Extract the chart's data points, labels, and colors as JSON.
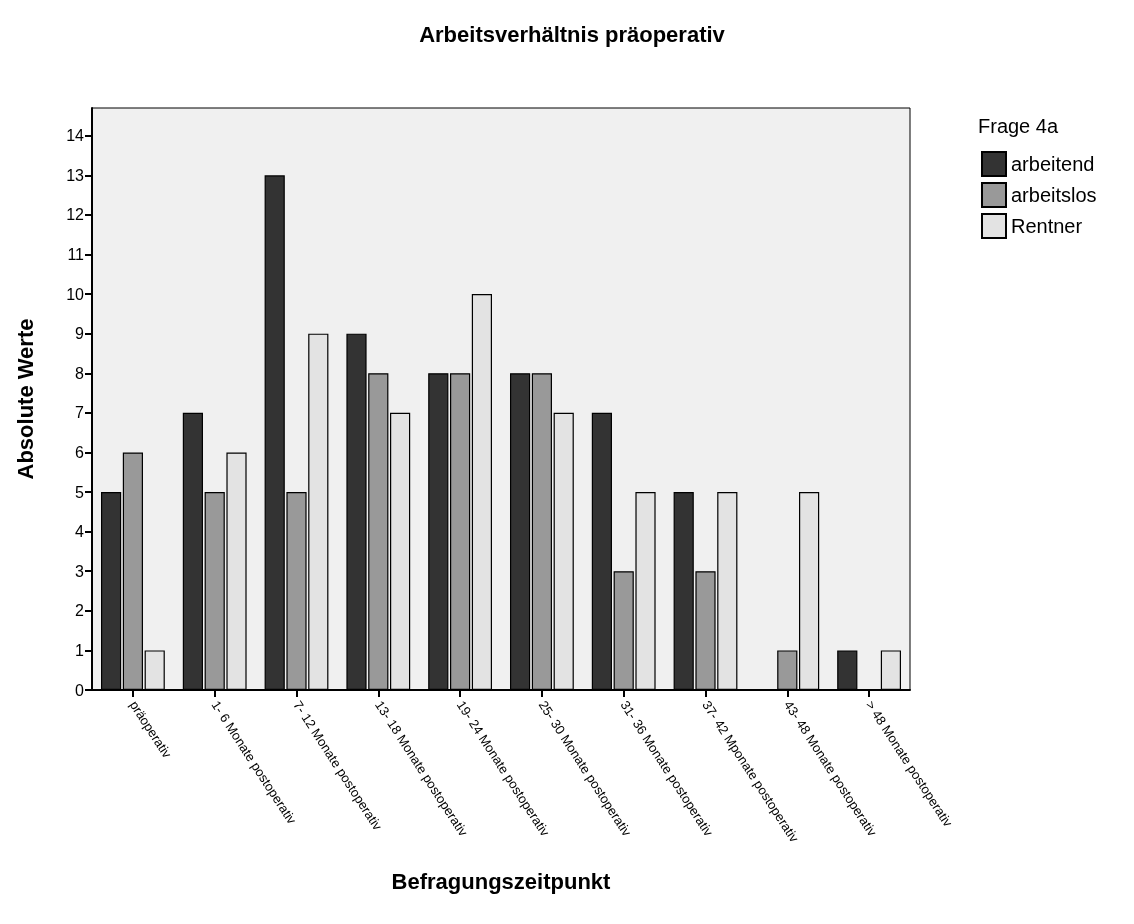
{
  "chart_data": {
    "type": "bar",
    "title": "Arbeitsverhältnis präoperativ",
    "xlabel": "Befragungszeitpunkt",
    "ylabel": "Absolute Werte",
    "legend_title": "Frage 4a",
    "categories": [
      "präoperativ",
      "1- 6 Monate postoperativ",
      "7- 12 Monate postoperativ",
      "13- 18 Monate postoperativ",
      "19- 24 Monate postoperativ",
      "25- 30 Monate postoperativ",
      "31- 36 Monate postoperativ",
      "37- 42 Mponate postoperativ",
      "43- 48 Monate postoperativ",
      "> 48 Monate postoperativ"
    ],
    "series": [
      {
        "name": "arbeitend",
        "color": "#333333",
        "values": [
          5,
          7,
          13,
          9,
          8,
          8,
          7,
          5,
          0,
          1
        ]
      },
      {
        "name": "arbeitslos",
        "color": "#999999",
        "values": [
          6,
          5,
          5,
          8,
          8,
          8,
          3,
          3,
          1,
          0
        ]
      },
      {
        "name": "Rentner",
        "color": "#e3e3e3",
        "values": [
          1,
          6,
          9,
          7,
          10,
          7,
          5,
          5,
          5,
          1
        ]
      }
    ],
    "ylim": [
      0,
      14.7
    ],
    "yticks": [
      0,
      1,
      2,
      3,
      4,
      5,
      6,
      7,
      8,
      9,
      10,
      11,
      12,
      13,
      14
    ],
    "grid": false,
    "legend": "top right"
  }
}
